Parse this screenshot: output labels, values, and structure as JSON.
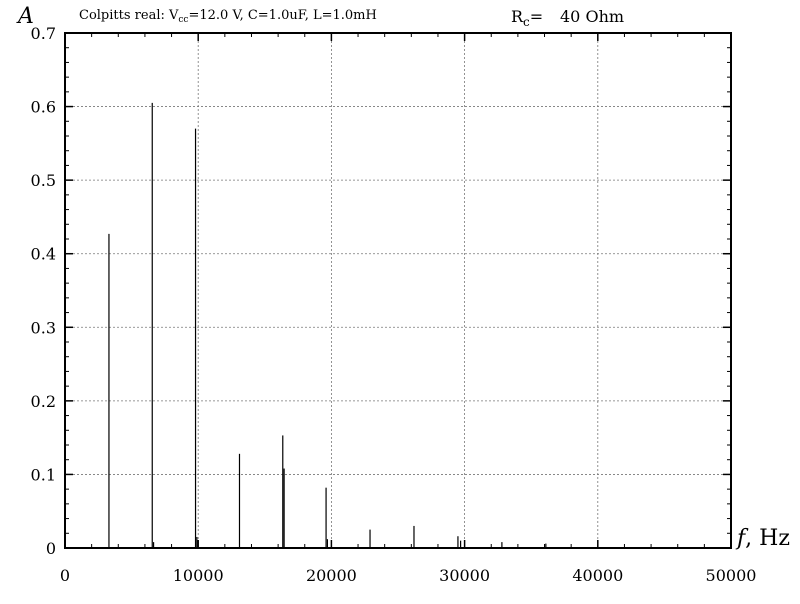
{
  "chart_data": {
    "type": "bar",
    "title": {
      "prefix": "Colpitts real: V",
      "sub": "cc",
      "suffix": "=12.0 V, C=1.0uF, L=1.0mH"
    },
    "annotation": {
      "label": "R",
      "label_sub": "c",
      "eq": "=",
      "value": "40 Ohm"
    },
    "ylabel": "A",
    "xlabel_var": "f",
    "xlabel_unit": ", Hz",
    "xlim": [
      0,
      50000
    ],
    "ylim": [
      0,
      0.7
    ],
    "xticks": [
      0,
      10000,
      20000,
      30000,
      40000,
      50000
    ],
    "yticks": [
      0,
      0.1,
      0.2,
      0.3,
      0.4,
      0.5,
      0.6,
      0.7
    ],
    "xtick_labels": [
      "0",
      "10000",
      "20000",
      "30000",
      "40000",
      "50000"
    ],
    "ytick_labels": [
      "0",
      "0.1",
      "0.2",
      "0.3",
      "0.4",
      "0.5",
      "0.6",
      "0.7"
    ],
    "grid": true,
    "series": [
      {
        "x": [
          3300,
          6550,
          6650,
          9800,
          9900,
          13100,
          16350,
          16450,
          19600,
          19700,
          22900,
          26200,
          29500,
          29700,
          32800,
          36100
        ],
        "values": [
          0.427,
          0.605,
          0.008,
          0.57,
          0.015,
          0.128,
          0.153,
          0.108,
          0.082,
          0.012,
          0.025,
          0.03,
          0.016,
          0.01,
          0.008,
          0.006
        ]
      }
    ]
  }
}
